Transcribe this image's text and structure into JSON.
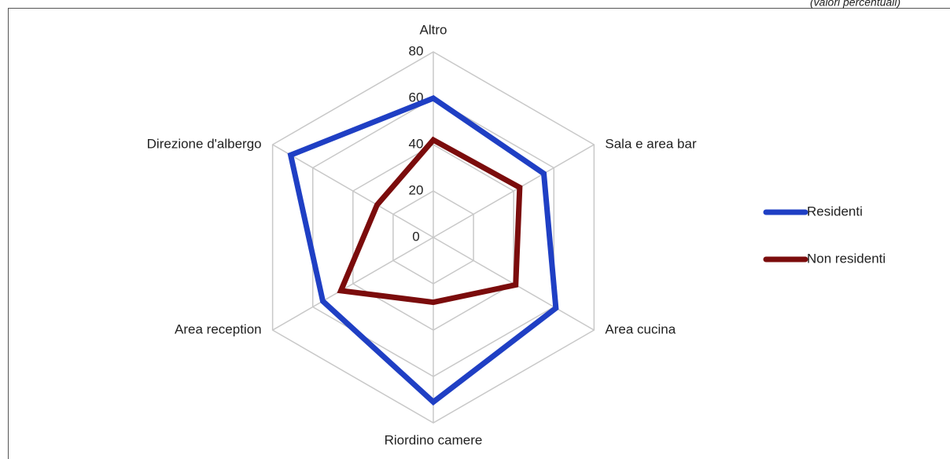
{
  "chart_data": {
    "type": "radar",
    "subtitle": "(valori percentuali)",
    "categories": [
      "Altro",
      "Sala e area bar",
      "Area cucina",
      "Riordino camere",
      "Area reception",
      "Direzione d'albergo"
    ],
    "series": [
      {
        "name": "Residenti",
        "color": "#1f3fc4",
        "values": [
          60,
          55,
          61,
          71,
          55,
          71
        ]
      },
      {
        "name": "Non residenti",
        "color": "#7b0c0c",
        "values": [
          42,
          43,
          41,
          28,
          46,
          28
        ]
      }
    ],
    "ylim": [
      0,
      80
    ],
    "yticks": [
      0,
      20,
      40,
      60,
      80
    ],
    "grid": true,
    "legend": "right"
  }
}
